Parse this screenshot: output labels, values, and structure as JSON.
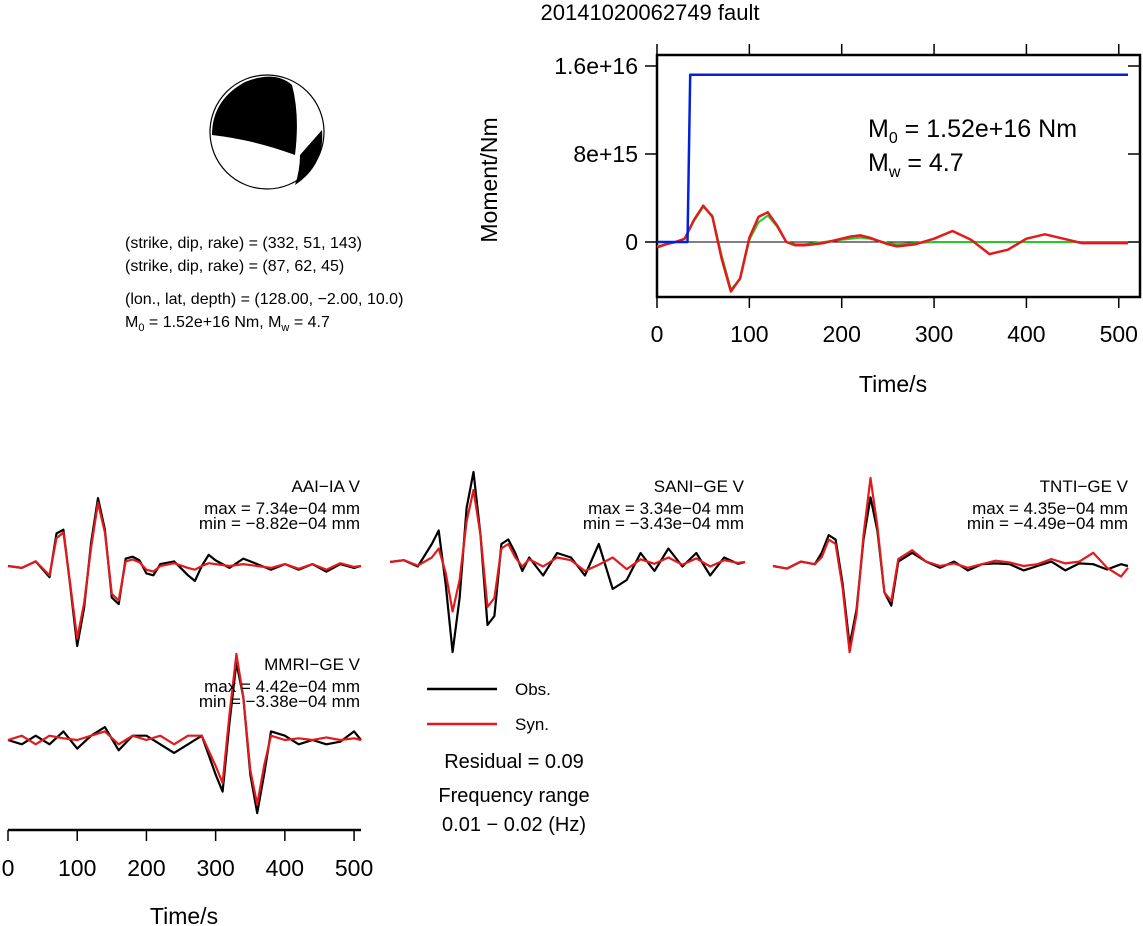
{
  "title": "20141020062749 fault",
  "colors": {
    "obs": "#000000",
    "syn": "#e31a1c",
    "moment_stf": "#0022dd",
    "moment_green": "#22cc22"
  },
  "mechanism": {
    "plane1": "(strike, dip, rake) = (332, 51, 143)",
    "plane2": "(strike, dip, rake) = (87, 62, 45)",
    "location": "(lon., lat, depth) = (128.00, −2.00, 10.0)",
    "m0_prefix": "M",
    "m0_sub": "0",
    "m0_text": " = 1.52e+16 Nm, M",
    "mw_sub": "w",
    "mw_text": " = 4.7"
  },
  "moment_plot": {
    "ylabel": "Moment/Nm",
    "xlabel": "Time/s",
    "yticks": [
      "0",
      "8e+15",
      "1.6e+16"
    ],
    "xticks": [
      "0",
      "100",
      "200",
      "300",
      "400",
      "500"
    ],
    "m0_label_main": "M",
    "m0_label_sub": "0",
    "m0_label_rest": " = 1.52e+16 Nm",
    "mw_label_main": "M",
    "mw_label_sub": "w",
    "mw_label_rest": " = 4.7"
  },
  "stations": [
    {
      "name": "AAI−IA V",
      "max": "max = 7.34e−04 mm",
      "min": "min = −8.82e−04 mm"
    },
    {
      "name": "SANI−GE V",
      "max": "max = 3.34e−04 mm",
      "min": "min = −3.43e−04 mm"
    },
    {
      "name": "TNTI−GE V",
      "max": "max = 4.35e−04 mm",
      "min": "min = −4.49e−04 mm"
    },
    {
      "name": "MMRI−GE V",
      "max": "max = 4.42e−04 mm",
      "min": "min = −3.38e−04 mm"
    }
  ],
  "legend": {
    "obs": "Obs.",
    "syn": "Syn."
  },
  "info": {
    "residual": "Residual = 0.09",
    "freq_label": "Frequency range",
    "freq_value": "0.01 − 0.02 (Hz)"
  },
  "wave_axis": {
    "xlabel": "Time/s",
    "xticks": [
      "0",
      "100",
      "200",
      "300",
      "400",
      "500"
    ]
  },
  "chart_data": [
    {
      "type": "line",
      "title": "",
      "xlabel": "Time/s",
      "ylabel": "Moment/Nm",
      "xlim": [
        0,
        510
      ],
      "ylim": [
        -5000000000000000.0,
        1.7e+16
      ],
      "series": [
        {
          "x": [
            0,
            33,
            36,
            510
          ],
          "values": [
            0,
            0,
            1.52e+16,
            1.52e+16
          ]
        },
        {
          "x": [
            0,
            10,
            20,
            30,
            40,
            50,
            60,
            70,
            80,
            90,
            100,
            110,
            120,
            130,
            140,
            150,
            160,
            170,
            180,
            190,
            200,
            210,
            220,
            230,
            240,
            250,
            260,
            280,
            300,
            320,
            340,
            360,
            380,
            400,
            420,
            440,
            460,
            480,
            510
          ],
          "values": [
            -400000000000000.0,
            -200000000000000.0,
            0,
            300000000000000.0,
            1900000000000000.0,
            3200000000000000.0,
            2400000000000000.0,
            -1200000000000000.0,
            -4300000000000000.0,
            -3400000000000000.0,
            200000000000000.0,
            1800000000000000.0,
            2400000000000000.0,
            1400000000000000.0,
            0,
            -200000000000000.0,
            -200000000000000.0,
            -100000000000000.0,
            0,
            100000000000000.0,
            200000000000000.0,
            300000000000000.0,
            400000000000000.0,
            300000000000000.0,
            100000000000000.0,
            -100000000000000.0,
            -200000000000000.0,
            -100000000000000.0,
            0,
            0,
            0,
            0,
            0,
            0,
            0,
            0,
            0,
            0,
            0
          ]
        },
        {
          "x": [
            0,
            10,
            20,
            30,
            40,
            50,
            60,
            70,
            80,
            90,
            100,
            110,
            120,
            130,
            140,
            150,
            160,
            170,
            180,
            190,
            200,
            210,
            220,
            230,
            240,
            250,
            260,
            280,
            300,
            320,
            340,
            360,
            380,
            400,
            420,
            440,
            460,
            480,
            510
          ],
          "values": [
            -500000000000000.0,
            -200000000000000.0,
            0,
            300000000000000.0,
            2000000000000000.0,
            3300000000000000.0,
            2300000000000000.0,
            -1500000000000000.0,
            -4500000000000000.0,
            -3300000000000000.0,
            400000000000000.0,
            2300000000000000.0,
            2700000000000000.0,
            1500000000000000.0,
            0,
            -300000000000000.0,
            -300000000000000.0,
            -200000000000000.0,
            -100000000000000.0,
            100000000000000.0,
            300000000000000.0,
            500000000000000.0,
            600000000000000.0,
            400000000000000.0,
            100000000000000.0,
            -200000000000000.0,
            -400000000000000.0,
            -200000000000000.0,
            300000000000000.0,
            1000000000000000.0,
            200000000000000.0,
            -1100000000000000.0,
            -700000000000000.0,
            300000000000000.0,
            700000000000000.0,
            300000000000000.0,
            -100000000000000.0,
            -100000000000000.0,
            -100000000000000.0
          ]
        }
      ]
    },
    {
      "type": "line",
      "title": "AAI−IA V",
      "xlabel": "Time/s",
      "xlim": [
        0,
        510
      ],
      "ylim": [
        -1,
        1
      ],
      "series": [
        {
          "name": "Obs.",
          "x": [
            0,
            20,
            40,
            60,
            70,
            80,
            90,
            100,
            110,
            120,
            130,
            140,
            150,
            160,
            170,
            180,
            190,
            200,
            210,
            220,
            240,
            260,
            270,
            280,
            290,
            300,
            320,
            340,
            360,
            380,
            400,
            420,
            440,
            460,
            480,
            500,
            510
          ],
          "values": [
            0,
            -0.02,
            0.05,
            -0.12,
            0.35,
            0.39,
            -0.22,
            -0.86,
            -0.45,
            0.25,
            0.73,
            0.39,
            -0.34,
            -0.41,
            0.08,
            0.1,
            0.06,
            -0.08,
            -0.1,
            0.02,
            0.05,
            -0.1,
            -0.16,
            0.0,
            0.12,
            0.06,
            -0.02,
            0.08,
            0.02,
            -0.04,
            0.02,
            -0.04,
            0.02,
            -0.06,
            0.02,
            -0.02,
            0.0
          ]
        },
        {
          "name": "Syn.",
          "x": [
            0,
            20,
            40,
            60,
            70,
            80,
            90,
            100,
            110,
            120,
            130,
            140,
            150,
            160,
            170,
            180,
            190,
            200,
            210,
            220,
            240,
            260,
            270,
            280,
            290,
            300,
            320,
            340,
            360,
            380,
            400,
            420,
            440,
            460,
            480,
            500,
            510
          ],
          "values": [
            0,
            -0.02,
            0.05,
            -0.1,
            0.3,
            0.36,
            -0.2,
            -0.78,
            -0.4,
            0.2,
            0.68,
            0.36,
            -0.3,
            -0.37,
            0.05,
            0.07,
            0.04,
            -0.04,
            -0.06,
            0.0,
            0.03,
            -0.02,
            -0.04,
            0.0,
            0.03,
            0.02,
            0.0,
            0.02,
            0.0,
            -0.02,
            0.02,
            -0.03,
            0.02,
            -0.04,
            0.03,
            -0.01,
            0.0
          ]
        }
      ]
    },
    {
      "type": "line",
      "title": "SANI−GE V",
      "xlabel": "Time/s",
      "xlim": [
        0,
        510
      ],
      "ylim": [
        -1,
        1
      ],
      "series": [
        {
          "name": "Obs.",
          "x": [
            0,
            20,
            40,
            60,
            70,
            80,
            90,
            100,
            110,
            120,
            130,
            140,
            150,
            160,
            170,
            180,
            190,
            200,
            220,
            240,
            260,
            280,
            300,
            320,
            340,
            360,
            380,
            400,
            420,
            440,
            460,
            480,
            500,
            510
          ],
          "values": [
            0,
            0.02,
            -0.05,
            0.2,
            0.35,
            -0.25,
            -1.0,
            -0.4,
            0.6,
            1.0,
            0.3,
            -0.7,
            -0.6,
            0.2,
            0.25,
            0.1,
            -0.1,
            0.05,
            -0.15,
            0.1,
            0.05,
            -0.15,
            0.2,
            -0.3,
            -0.2,
            0.1,
            -0.1,
            0.15,
            -0.05,
            0.1,
            -0.15,
            0.05,
            -0.02,
            0.0
          ]
        },
        {
          "name": "Syn.",
          "x": [
            0,
            20,
            40,
            60,
            70,
            80,
            90,
            100,
            110,
            120,
            130,
            140,
            150,
            160,
            170,
            180,
            190,
            200,
            220,
            240,
            260,
            280,
            300,
            320,
            340,
            360,
            380,
            400,
            420,
            440,
            460,
            480,
            500,
            510
          ],
          "values": [
            0,
            0.02,
            -0.04,
            0.05,
            0.15,
            -0.12,
            -0.55,
            -0.2,
            0.45,
            0.8,
            0.3,
            -0.5,
            -0.4,
            0.15,
            0.2,
            0.05,
            -0.05,
            0.03,
            -0.05,
            0.05,
            0.02,
            -0.1,
            -0.03,
            0.05,
            -0.08,
            0.03,
            -0.02,
            0.05,
            -0.03,
            0.04,
            -0.05,
            0.02,
            -0.01,
            0.0
          ]
        }
      ]
    },
    {
      "type": "line",
      "title": "TNTI−GE V",
      "xlabel": "Time/s",
      "xlim": [
        0,
        510
      ],
      "ylim": [
        -1,
        1
      ],
      "series": [
        {
          "name": "Obs.",
          "x": [
            0,
            20,
            40,
            60,
            70,
            80,
            90,
            100,
            110,
            120,
            130,
            140,
            150,
            160,
            170,
            180,
            200,
            220,
            240,
            260,
            280,
            300,
            320,
            340,
            360,
            380,
            400,
            420,
            440,
            460,
            480,
            500,
            510
          ],
          "values": [
            0,
            -0.03,
            0.05,
            0.02,
            0.15,
            0.35,
            0.3,
            -0.2,
            -0.9,
            -0.5,
            0.3,
            0.78,
            0.4,
            -0.3,
            -0.45,
            0.05,
            0.15,
            0.05,
            -0.02,
            0.05,
            -0.05,
            0.02,
            0.03,
            0.02,
            -0.05,
            0.0,
            0.05,
            -0.05,
            0.03,
            0.02,
            -0.04,
            0.02,
            0.0
          ]
        },
        {
          "name": "Syn.",
          "x": [
            0,
            20,
            40,
            60,
            70,
            80,
            90,
            100,
            110,
            120,
            130,
            140,
            150,
            160,
            170,
            180,
            200,
            220,
            240,
            260,
            280,
            300,
            320,
            340,
            360,
            380,
            400,
            420,
            440,
            460,
            480,
            500,
            510
          ],
          "values": [
            0,
            -0.03,
            0.05,
            0.02,
            0.1,
            0.3,
            0.25,
            -0.25,
            -0.98,
            -0.55,
            0.35,
            1.0,
            0.45,
            -0.3,
            -0.4,
            0.08,
            0.18,
            0.05,
            0.0,
            0.03,
            -0.02,
            0.02,
            0.06,
            0.04,
            0.0,
            0.02,
            0.08,
            0.03,
            0.05,
            0.15,
            -0.02,
            -0.12,
            -0.02
          ]
        }
      ]
    },
    {
      "type": "line",
      "title": "MMRI−GE V",
      "xlabel": "Time/s",
      "xlim": [
        0,
        510
      ],
      "ylim": [
        -1,
        1
      ],
      "series": [
        {
          "name": "Obs.",
          "x": [
            0,
            20,
            40,
            60,
            80,
            100,
            120,
            140,
            160,
            180,
            200,
            220,
            240,
            260,
            280,
            300,
            310,
            320,
            330,
            340,
            350,
            360,
            370,
            380,
            400,
            420,
            440,
            460,
            480,
            500,
            510
          ],
          "values": [
            0,
            -0.05,
            0.05,
            -0.05,
            0.1,
            -0.1,
            0.05,
            0.15,
            -0.12,
            0.05,
            0.05,
            -0.05,
            -0.15,
            -0.05,
            0.05,
            -0.4,
            -0.6,
            0.2,
            0.9,
            0.5,
            -0.4,
            -0.85,
            -0.4,
            0.1,
            0.05,
            -0.05,
            0.0,
            -0.05,
            -0.02,
            0.1,
            0.0
          ]
        },
        {
          "name": "Syn.",
          "x": [
            0,
            20,
            40,
            60,
            80,
            100,
            120,
            140,
            160,
            180,
            200,
            220,
            240,
            260,
            280,
            300,
            310,
            320,
            330,
            340,
            350,
            360,
            370,
            380,
            400,
            420,
            440,
            460,
            480,
            500,
            510
          ],
          "values": [
            0,
            0.05,
            -0.05,
            0.05,
            0.02,
            0.0,
            0.05,
            0.1,
            -0.05,
            0.05,
            0.0,
            0.05,
            -0.05,
            0.05,
            0.05,
            -0.3,
            -0.5,
            0.3,
            1.0,
            0.5,
            -0.35,
            -0.75,
            -0.3,
            0.05,
            0.0,
            0.02,
            0.0,
            0.03,
            0.0,
            0.02,
            0.0
          ]
        }
      ]
    }
  ]
}
